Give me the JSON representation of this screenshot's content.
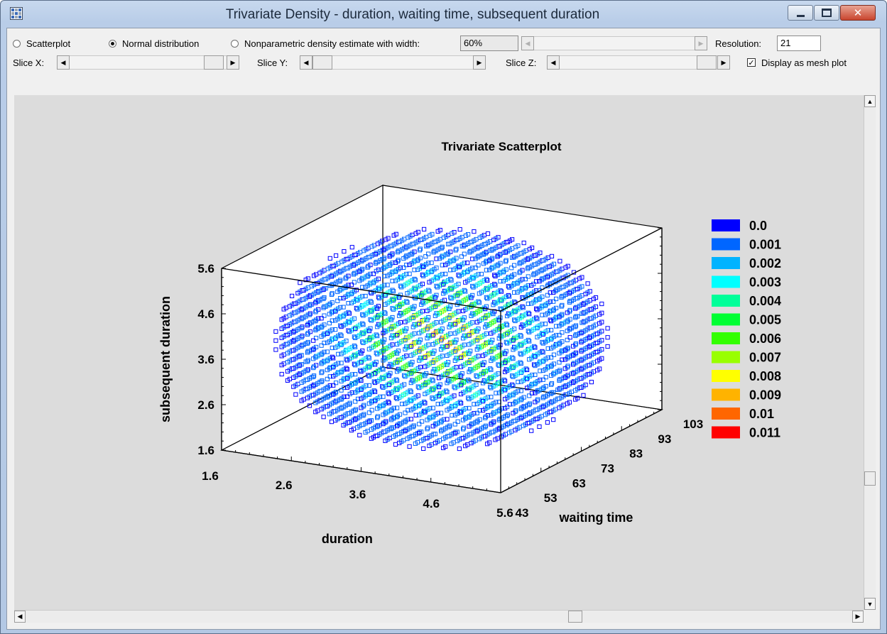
{
  "window": {
    "title": "Trivariate Density - duration, waiting time, subsequent duration",
    "close_glyph": "✕"
  },
  "options": {
    "scatterplot_label": "Scatterplot",
    "normal_label": "Normal distribution",
    "nonparam_label": "Nonparametric density estimate with width:",
    "width_value": "60%",
    "resolution_label": "Resolution:",
    "resolution_value": "21",
    "selected": "Normal distribution"
  },
  "slices": {
    "x_label": "Slice X:",
    "y_label": "Slice Y:",
    "z_label": "Slice Z:",
    "mesh_label": "Display as mesh plot",
    "mesh_checked": true,
    "check_glyph": "✓"
  },
  "scroll_glyphs": {
    "left": "◀",
    "right": "▶",
    "up": "▲",
    "down": "▼"
  },
  "icons": [
    "app-icon",
    "minimize-icon",
    "maximize-icon",
    "close-icon",
    "check-icon",
    "arrow-left-icon",
    "arrow-right-icon",
    "arrow-up-icon",
    "arrow-down-icon"
  ],
  "chart_data": {
    "type": "scatter",
    "title": "Trivariate Scatterplot",
    "xlabel": "duration",
    "ylabel": "waiting time",
    "zlabel": "subsequent duration",
    "x_ticks": [
      "1.6",
      "2.6",
      "3.6",
      "4.6",
      "5.6"
    ],
    "y_ticks": [
      "43",
      "53",
      "63",
      "73",
      "83",
      "93",
      "103"
    ],
    "z_ticks": [
      "1.6",
      "2.6",
      "3.6",
      "4.6",
      "5.6"
    ],
    "xlim": [
      1.6,
      5.6
    ],
    "ylim": [
      43,
      103
    ],
    "zlim": [
      1.6,
      5.6
    ],
    "grid_resolution": 21,
    "density_mean": [
      3.6,
      73,
      3.6
    ],
    "legend_position": "right",
    "legend": [
      {
        "label": "0.0",
        "color": "#0000ff"
      },
      {
        "label": "0.001",
        "color": "#0066ff"
      },
      {
        "label": "0.002",
        "color": "#00b3ff"
      },
      {
        "label": "0.003",
        "color": "#00ffff"
      },
      {
        "label": "0.004",
        "color": "#00ff99"
      },
      {
        "label": "0.005",
        "color": "#00ff33"
      },
      {
        "label": "0.006",
        "color": "#33ff00"
      },
      {
        "label": "0.007",
        "color": "#99ff00"
      },
      {
        "label": "0.008",
        "color": "#ffff00"
      },
      {
        "label": "0.009",
        "color": "#ffb300"
      },
      {
        "label": "0.01",
        "color": "#ff6600"
      },
      {
        "label": "0.011",
        "color": "#ff0000"
      }
    ]
  }
}
